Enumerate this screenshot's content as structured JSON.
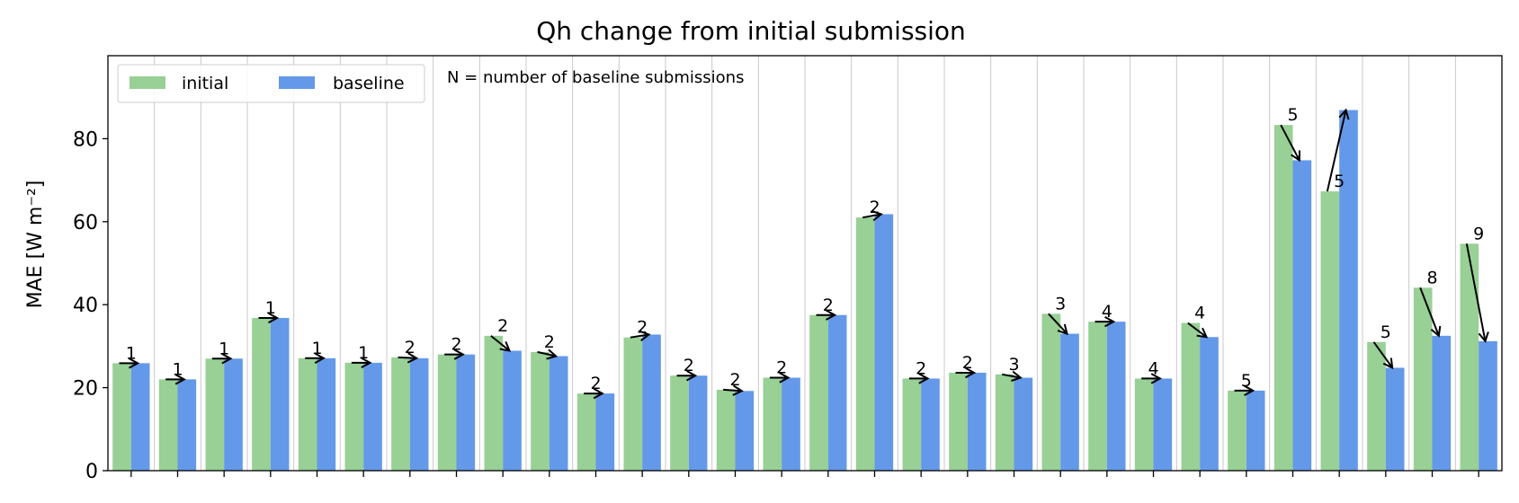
{
  "chart_data": {
    "type": "bar",
    "title": "Qh change from initial submission",
    "xlabel": "",
    "ylabel": "MAE [W m⁻²]",
    "ylim": [
      0,
      100
    ],
    "yticks": [
      0,
      20,
      40,
      60,
      80
    ],
    "grid": "vertical",
    "legend_placement": "top-left",
    "annotation": "N = number of baseline submissions",
    "series": [
      {
        "name": "initial",
        "color": "#98d095",
        "values": [
          25.9,
          22.0,
          27.0,
          36.8,
          27.1,
          26.0,
          27.3,
          28.0,
          32.5,
          28.6,
          18.6,
          32.1,
          22.9,
          19.5,
          22.4,
          37.5,
          61.0,
          22.2,
          23.6,
          23.2,
          37.8,
          35.9,
          22.2,
          35.6,
          19.3,
          83.3,
          67.3,
          31.0,
          44.1,
          54.7
        ]
      },
      {
        "name": "baseline",
        "color": "#6499e9",
        "values": [
          25.9,
          22.0,
          27.0,
          36.8,
          27.1,
          26.0,
          27.1,
          28.0,
          28.9,
          27.6,
          18.6,
          32.8,
          22.9,
          19.2,
          22.4,
          37.5,
          61.8,
          22.2,
          23.6,
          22.4,
          33.0,
          35.9,
          22.2,
          32.2,
          19.3,
          74.8,
          86.9,
          24.8,
          32.5,
          31.2
        ]
      }
    ],
    "n_submissions": [
      1,
      1,
      1,
      1,
      1,
      1,
      2,
      2,
      2,
      2,
      2,
      2,
      2,
      2,
      2,
      2,
      2,
      2,
      2,
      3,
      3,
      4,
      4,
      4,
      5,
      5,
      5,
      5,
      8,
      9
    ]
  }
}
